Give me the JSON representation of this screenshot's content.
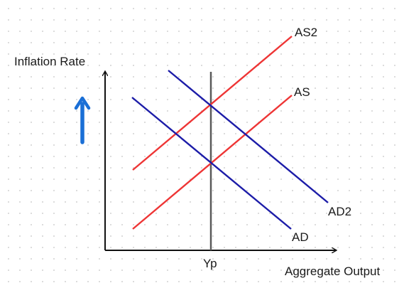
{
  "diagram": {
    "y_axis_label": "Inflation Rate",
    "x_axis_label": "Aggregate Output",
    "x_tick_label": "Yp",
    "curves": {
      "as": "AS",
      "as2": "AS2",
      "ad": "AD",
      "ad2": "AD2"
    },
    "indicator_arrow": "up-arrow-icon"
  },
  "colors": {
    "supply": "#ee3535",
    "demand": "#1c1ca8",
    "potential": "#5a5a5a",
    "axis": "#111111",
    "indicator": "#1a6fd6",
    "background": "#ffffff"
  }
}
